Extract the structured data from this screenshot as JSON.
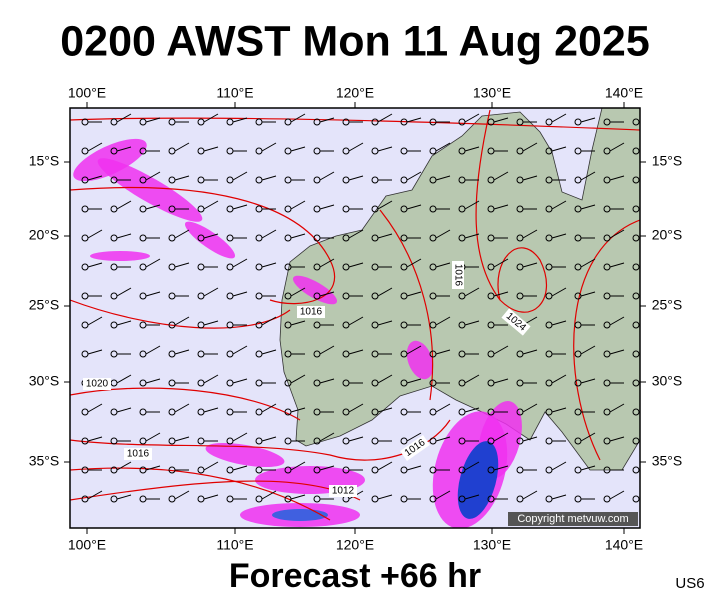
{
  "title": "0200 AWST Mon 11 Aug 2025",
  "longitude_labels_top": [
    "100°E",
    "110°E",
    "120°E",
    "130°E",
    "140°E"
  ],
  "longitude_labels_bottom": [
    "100°E",
    "110°E",
    "120°E",
    "130°E",
    "140°E"
  ],
  "latitude_labels_left": [
    "15°S",
    "20°S",
    "25°S",
    "30°S",
    "35°S"
  ],
  "latitude_labels_right": [
    "15°S",
    "20°S",
    "25°S",
    "30°S",
    "35°S"
  ],
  "isobar_labels": [
    "1016",
    "1020",
    "1016",
    "1016",
    "1012",
    "1016",
    "1024"
  ],
  "copyright": "Copyright metvuw.com",
  "forecast": "Forecast +66 hr",
  "region_code": "US6"
}
